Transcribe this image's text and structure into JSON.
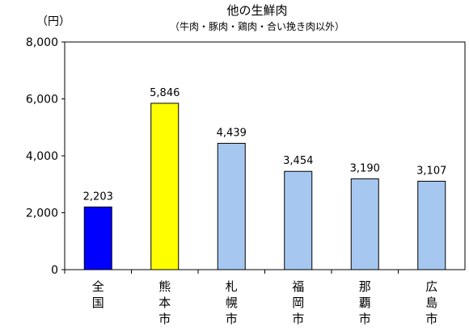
{
  "chart_data": {
    "type": "bar",
    "title": "他の生鮮肉",
    "subtitle": "（牛肉・豚肉・鶏肉・合い挽き肉以外）",
    "ylabel": "（円）",
    "xlabel": "",
    "ylim": [
      0,
      8000
    ],
    "yticks": [
      0,
      2000,
      4000,
      6000,
      8000
    ],
    "ytick_labels": [
      "0",
      "2,000",
      "4,000",
      "6,000",
      "8,000"
    ],
    "grid": false,
    "legend": "none",
    "categories": [
      "全国",
      "熊本市",
      "札幌市",
      "福岡市",
      "那覇市",
      "広島市"
    ],
    "values": [
      2203,
      5846,
      4439,
      3454,
      3190,
      3107
    ],
    "value_labels": [
      "2,203",
      "5,846",
      "4,439",
      "3,454",
      "3,190",
      "3,107"
    ],
    "bar_colors": [
      "#0000ff",
      "#ffff00",
      "#a6c8f0",
      "#a6c8f0",
      "#a6c8f0",
      "#a6c8f0"
    ]
  }
}
